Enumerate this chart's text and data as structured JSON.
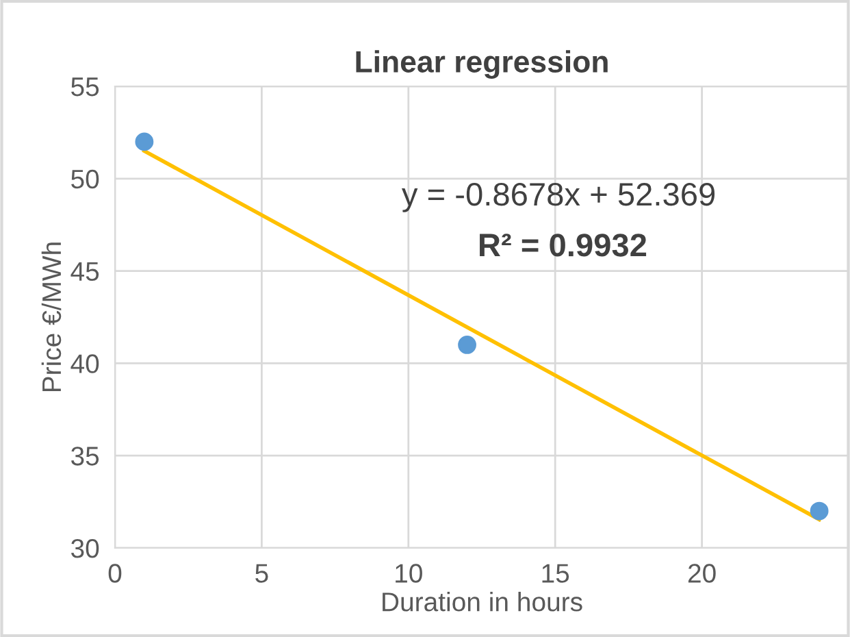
{
  "chart_data": {
    "type": "scatter",
    "title": "Linear regression",
    "xlabel": "Duration in hours",
    "ylabel": "Price €/MWh",
    "annotations": [
      "y = -0.8678x + 52.369",
      "R² = 0.9932"
    ],
    "series": [
      {
        "color": "#5b9bd5",
        "x": [
          1,
          12,
          24
        ],
        "values": [
          52,
          41,
          32
        ],
        "marker": "circle"
      },
      {
        "type": "line",
        "color": "#ffc000",
        "x": [
          1,
          24
        ],
        "values": [
          51.5,
          31.54
        ],
        "marker": "none"
      }
    ],
    "xlim": [
      0,
      25
    ],
    "xticks": [
      0,
      5,
      10,
      15,
      20
    ],
    "ylim": [
      30,
      55
    ],
    "yticks": [
      30,
      35,
      40,
      45,
      50,
      55
    ],
    "grid": true,
    "line_style": "solid",
    "legend": false
  }
}
